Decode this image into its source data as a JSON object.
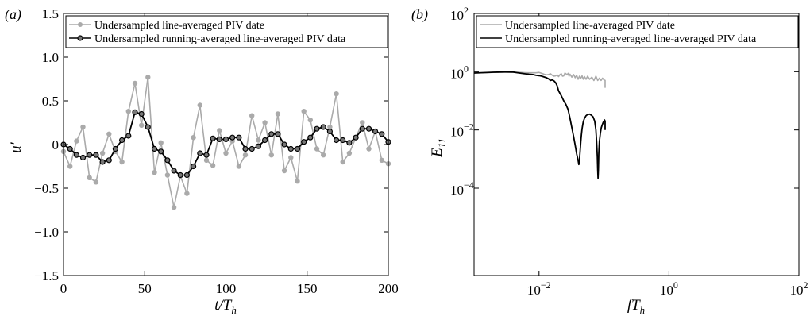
{
  "chart_data": [
    {
      "type": "line",
      "panel_label": "(a)",
      "xlabel": "t/T_h",
      "ylabel": "u′",
      "xlim": [
        0,
        200
      ],
      "ylim": [
        -1.5,
        1.5
      ],
      "xticks": [
        0,
        50,
        100,
        150,
        200
      ],
      "xtick_labels": [
        "0",
        "50",
        "100",
        "150",
        "200"
      ],
      "yticks": [
        -1.5,
        -1.0,
        -0.5,
        0,
        0.5,
        1.0,
        1.5
      ],
      "ytick_labels": [
        "−1.5",
        "−1.0",
        "−0.5",
        "0",
        "0.5",
        "1.0",
        "1.5"
      ],
      "grid": false,
      "legend_position": "top",
      "series": [
        {
          "name": "Undersampled line-averaged PIV date",
          "color": "#aaaaaa",
          "marker": "circle",
          "x": [
            0,
            4,
            8,
            12,
            16,
            20,
            24,
            28,
            32,
            36,
            40,
            44,
            48,
            52,
            56,
            60,
            64,
            68,
            72,
            76,
            80,
            84,
            88,
            92,
            96,
            100,
            104,
            108,
            112,
            116,
            120,
            124,
            128,
            132,
            136,
            140,
            144,
            148,
            152,
            156,
            160,
            164,
            168,
            172,
            176,
            180,
            184,
            188,
            192,
            196,
            200
          ],
          "y": [
            -0.08,
            -0.25,
            0.04,
            0.2,
            -0.38,
            -0.43,
            -0.1,
            0.12,
            -0.08,
            -0.2,
            0.38,
            0.7,
            0.22,
            0.77,
            -0.32,
            0.02,
            -0.35,
            -0.72,
            -0.36,
            -0.56,
            0.08,
            0.45,
            -0.18,
            -0.24,
            0.16,
            -0.1,
            0.04,
            -0.25,
            -0.12,
            0.33,
            0.05,
            0.25,
            -0.12,
            0.35,
            -0.3,
            -0.15,
            -0.42,
            0.38,
            0.28,
            -0.05,
            -0.12,
            0.2,
            0.58,
            -0.2,
            -0.1,
            0.08,
            0.25,
            -0.05,
            0.15,
            -0.18,
            -0.22
          ]
        },
        {
          "name": "Undersampled running-averaged line-averaged PIV data",
          "color": "#000000",
          "marker": "circle",
          "x": [
            0,
            4,
            8,
            12,
            16,
            20,
            24,
            28,
            32,
            36,
            40,
            44,
            48,
            52,
            56,
            60,
            64,
            68,
            72,
            76,
            80,
            84,
            88,
            92,
            96,
            100,
            104,
            108,
            112,
            116,
            120,
            124,
            128,
            132,
            136,
            140,
            144,
            148,
            152,
            156,
            160,
            164,
            168,
            172,
            176,
            180,
            184,
            188,
            192,
            196,
            200
          ],
          "y": [
            0.0,
            -0.05,
            -0.12,
            -0.15,
            -0.12,
            -0.12,
            -0.2,
            -0.18,
            -0.05,
            0.05,
            0.1,
            0.37,
            0.35,
            0.2,
            -0.05,
            -0.08,
            -0.18,
            -0.3,
            -0.35,
            -0.35,
            -0.25,
            -0.1,
            -0.12,
            0.07,
            0.06,
            0.06,
            0.08,
            0.08,
            -0.05,
            -0.05,
            -0.02,
            0.05,
            0.12,
            0.12,
            0.0,
            -0.05,
            -0.05,
            0.03,
            0.08,
            0.18,
            0.2,
            0.15,
            0.05,
            0.05,
            0.02,
            0.08,
            0.18,
            0.18,
            0.15,
            0.12,
            0.03
          ]
        }
      ]
    },
    {
      "type": "line",
      "panel_label": "(b)",
      "xlabel": "fT_h",
      "ylabel": "E_11",
      "xscale": "log",
      "yscale": "log",
      "xlim": [
        0.001,
        100
      ],
      "ylim": [
        1e-07,
        100
      ],
      "xticks": [
        0.01,
        1,
        100
      ],
      "xtick_labels": [
        [
          "10",
          "−2"
        ],
        [
          "10",
          "0"
        ],
        [
          "10",
          "2"
        ]
      ],
      "yticks": [
        0.0001,
        0.01,
        1,
        100
      ],
      "ytick_labels": [
        [
          "10",
          "−4"
        ],
        [
          "10",
          "−2"
        ],
        [
          "10",
          "0"
        ],
        [
          "10",
          "2"
        ]
      ],
      "grid": false,
      "legend_position": "top",
      "series": [
        {
          "name": "Undersampled line-averaged PIV date",
          "color": "#aaaaaa",
          "x": [
            0.001,
            0.002,
            0.003,
            0.004,
            0.005,
            0.006,
            0.007,
            0.008,
            0.009,
            0.01,
            0.011,
            0.012,
            0.013,
            0.014,
            0.015,
            0.016,
            0.017,
            0.018,
            0.019,
            0.02,
            0.021,
            0.022,
            0.023,
            0.024,
            0.025,
            0.026,
            0.027,
            0.028,
            0.029,
            0.03,
            0.032,
            0.034,
            0.036,
            0.038,
            0.04,
            0.042,
            0.044,
            0.046,
            0.048,
            0.05,
            0.053,
            0.056,
            0.06,
            0.065,
            0.07,
            0.075,
            0.08,
            0.085,
            0.09,
            0.095,
            0.1,
            0.104,
            0.104
          ],
          "y": [
            0.9,
            0.95,
            0.97,
            0.96,
            0.95,
            0.93,
            0.92,
            0.92,
            0.92,
            0.95,
            0.88,
            0.82,
            0.78,
            0.8,
            0.85,
            0.75,
            0.7,
            0.72,
            0.78,
            0.68,
            0.8,
            0.85,
            0.7,
            0.72,
            0.9,
            0.85,
            0.78,
            0.88,
            0.7,
            0.82,
            0.65,
            0.8,
            0.62,
            0.75,
            0.55,
            0.7,
            0.6,
            0.72,
            0.55,
            0.68,
            0.55,
            0.7,
            0.55,
            0.65,
            0.5,
            0.7,
            0.5,
            0.6,
            0.5,
            0.6,
            0.52,
            0.5,
            0.28
          ]
        },
        {
          "name": "Undersampled running-averaged line-averaged PIV data",
          "color": "#000000",
          "x": [
            0.001,
            0.002,
            0.003,
            0.004,
            0.005,
            0.006,
            0.007,
            0.008,
            0.009,
            0.01,
            0.011,
            0.012,
            0.013,
            0.014,
            0.015,
            0.016,
            0.017,
            0.018,
            0.019,
            0.02,
            0.022,
            0.024,
            0.026,
            0.028,
            0.03,
            0.032,
            0.034,
            0.036,
            0.038,
            0.04,
            0.041,
            0.042,
            0.043,
            0.044,
            0.045,
            0.046,
            0.047,
            0.048,
            0.05,
            0.053,
            0.056,
            0.06,
            0.064,
            0.068,
            0.072,
            0.075,
            0.077,
            0.079,
            0.08,
            0.081,
            0.082,
            0.083,
            0.085,
            0.088,
            0.091,
            0.094,
            0.097,
            0.1,
            0.102,
            0.104,
            0.104
          ],
          "y": [
            0.9,
            0.96,
            0.98,
            0.97,
            0.9,
            0.85,
            0.82,
            0.8,
            0.75,
            0.73,
            0.7,
            0.66,
            0.62,
            0.57,
            0.5,
            0.52,
            0.48,
            0.42,
            0.33,
            0.22,
            0.15,
            0.1,
            0.075,
            0.05,
            0.025,
            0.012,
            0.006,
            0.003,
            0.0015,
            0.0009,
            0.00065,
            0.001,
            0.002,
            0.004,
            0.007,
            0.011,
            0.015,
            0.019,
            0.025,
            0.031,
            0.034,
            0.035,
            0.032,
            0.028,
            0.02,
            0.01,
            0.004,
            0.0012,
            0.0004,
            0.00022,
            0.0004,
            0.0015,
            0.004,
            0.008,
            0.012,
            0.015,
            0.018,
            0.02,
            0.022,
            0.02,
            0.01
          ]
        }
      ]
    }
  ]
}
